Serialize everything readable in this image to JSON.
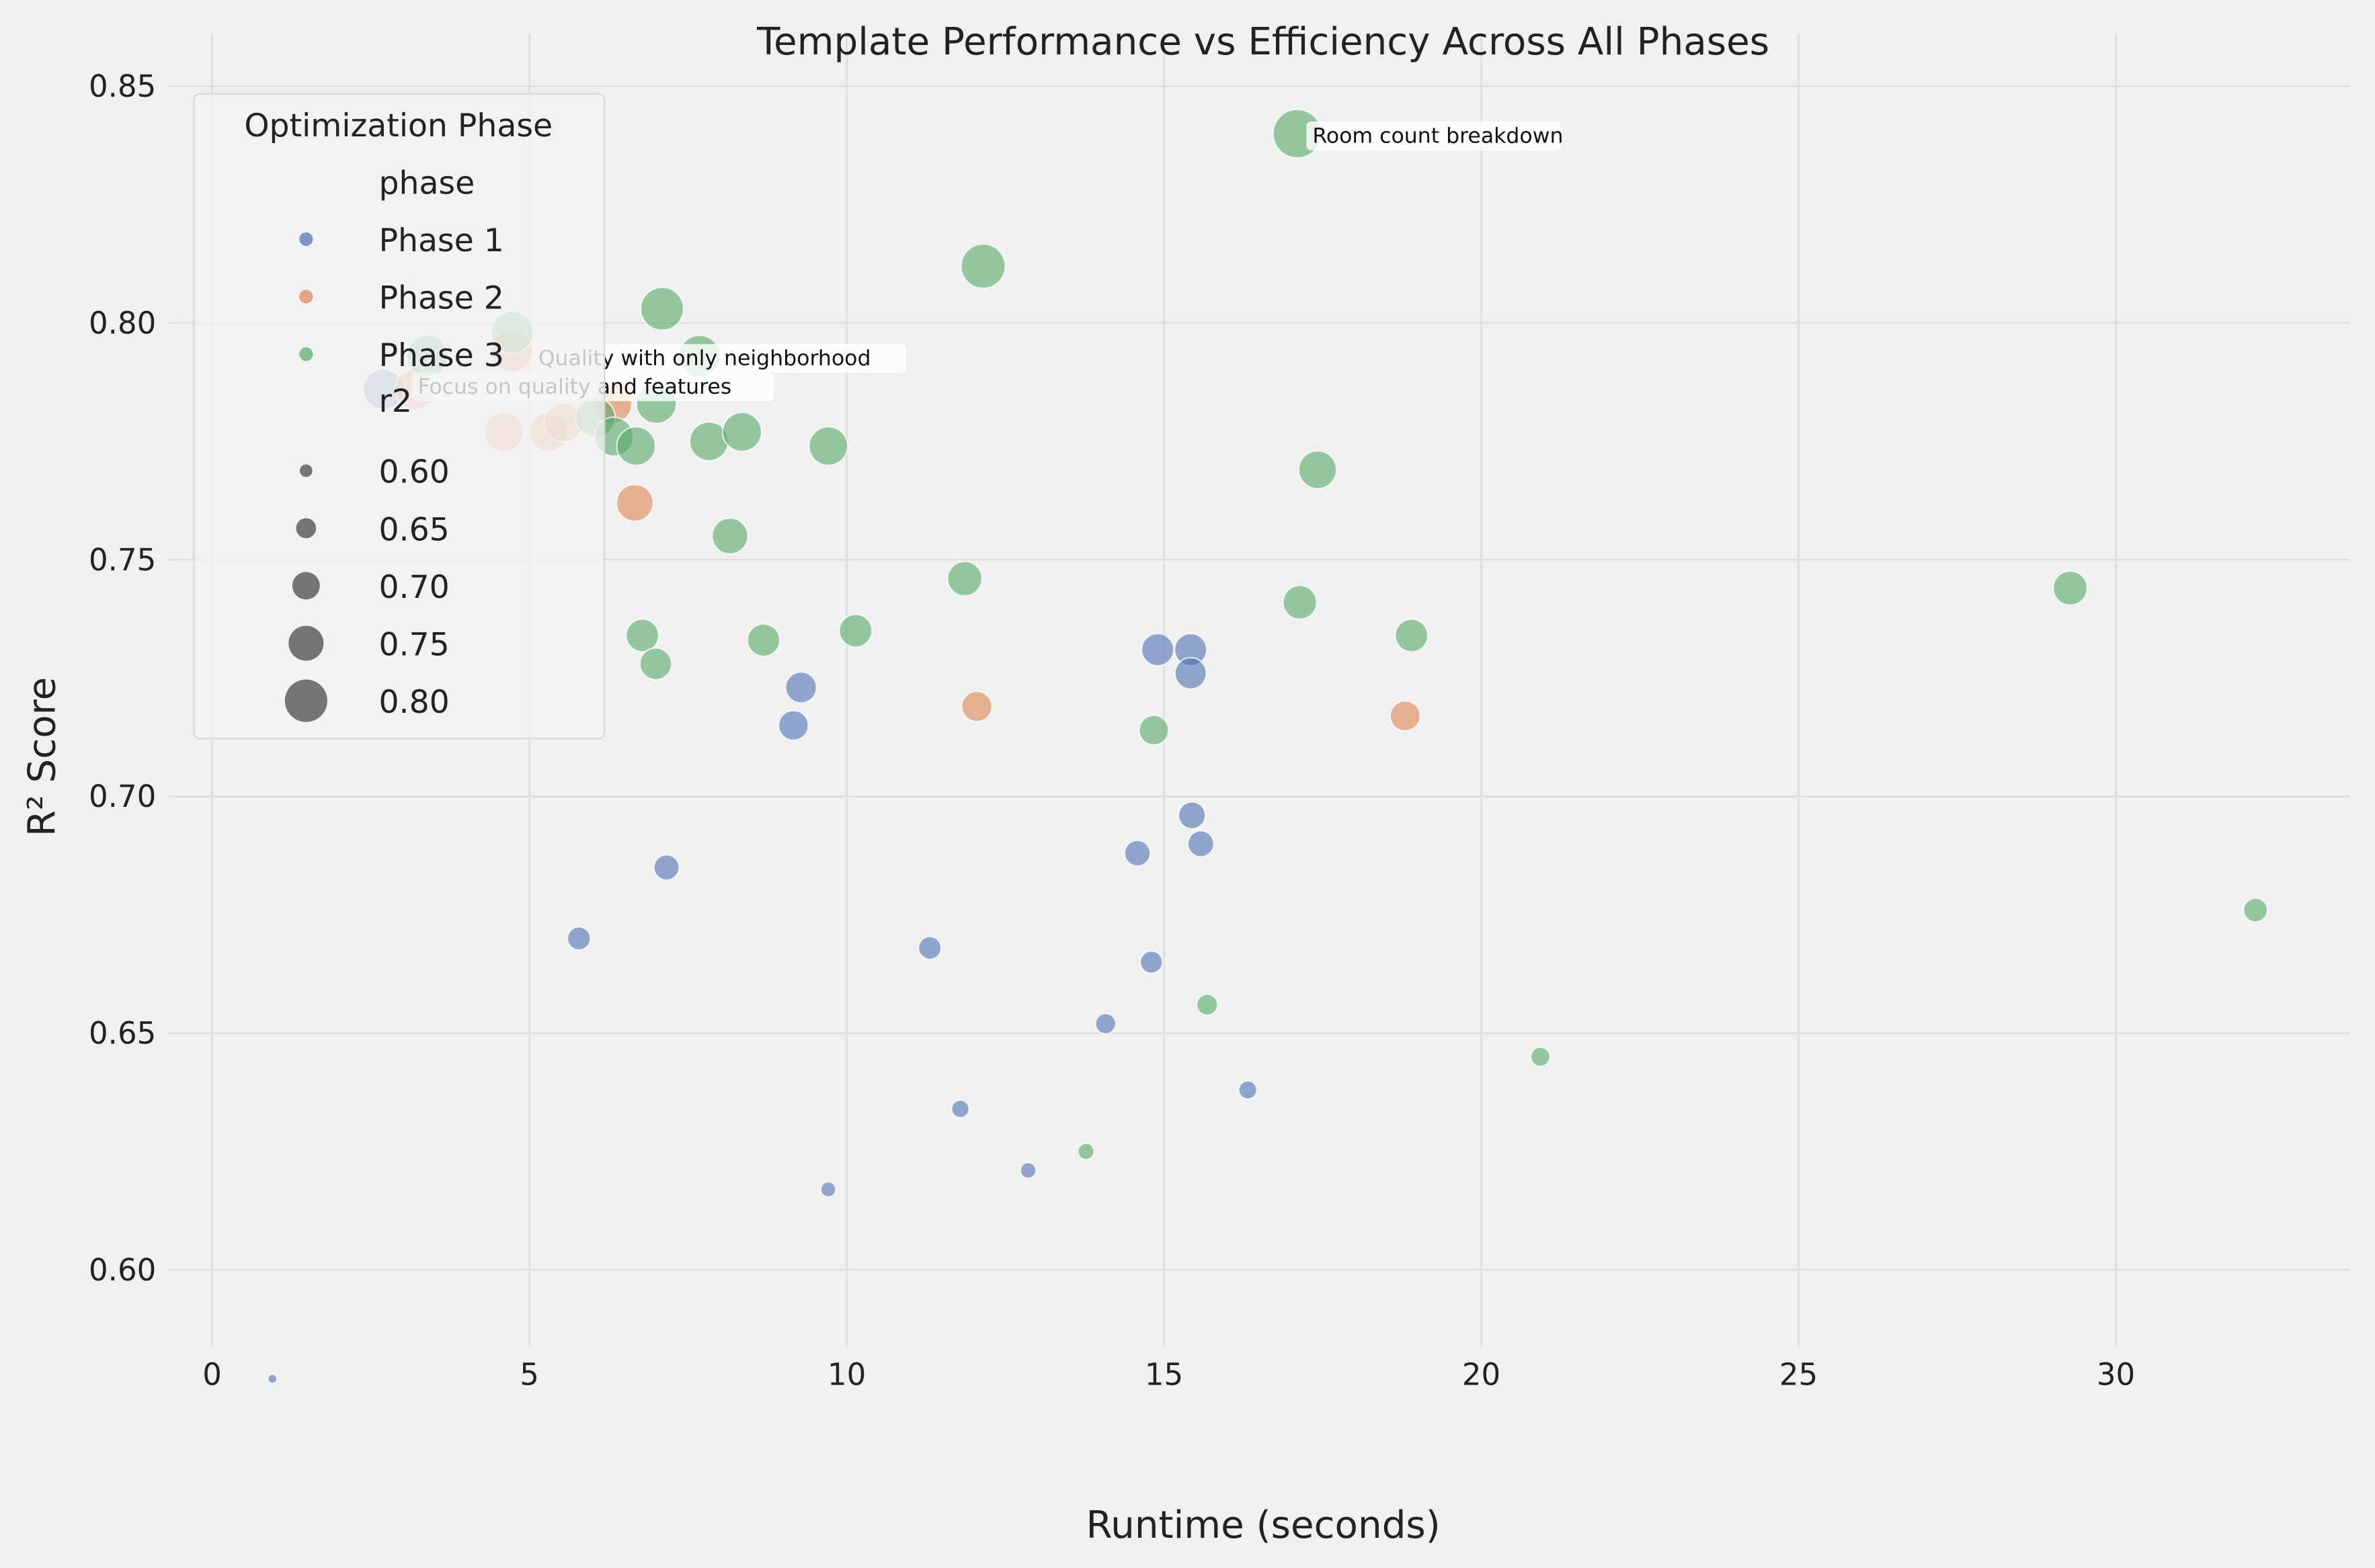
{
  "chart_data": {
    "type": "scatter",
    "title": "Template Performance vs Efficiency Across All Phases",
    "xlabel": "Runtime (seconds)",
    "ylabel": "R² Score",
    "xlim": [
      -0.7,
      33.6
    ],
    "ylim": [
      0.565,
      0.852
    ],
    "xticks": [
      0,
      5,
      10,
      15,
      20,
      25,
      30
    ],
    "yticks": [
      0.6,
      0.65,
      0.7,
      0.75,
      0.8,
      0.85
    ],
    "grid": true,
    "legend": {
      "title": "Optimization Phase",
      "placement": "top-left",
      "hue_title": "phase",
      "size_title": "r2",
      "size_labels": [
        "0.60",
        "0.65",
        "0.70",
        "0.75",
        "0.80"
      ]
    },
    "size_encoding": "r2",
    "series": [
      {
        "name": "Phase 1",
        "color": "#4c72b0",
        "x": [
          0.95,
          2.7,
          5.78,
          7.16,
          9.16,
          9.28,
          9.71,
          11.31,
          11.79,
          12.86,
          14.08,
          14.58,
          14.8,
          14.9,
          15.42,
          15.42,
          15.44,
          15.58,
          16.32
        ],
        "y": [
          0.577,
          0.786,
          0.67,
          0.685,
          0.715,
          0.723,
          0.617,
          0.668,
          0.634,
          0.621,
          0.652,
          0.688,
          0.665,
          0.731,
          0.731,
          0.726,
          0.696,
          0.69,
          0.638
        ]
      },
      {
        "name": "Phase 2",
        "color": "#dd8452",
        "x": [
          3.2,
          4.6,
          4.72,
          5.3,
          5.54,
          6.3,
          6.66,
          12.05,
          18.8
        ],
        "y": [
          0.786,
          0.777,
          0.794,
          0.777,
          0.779,
          0.783,
          0.762,
          0.719,
          0.717
        ]
      },
      {
        "name": "Phase 3",
        "color": "#55a868",
        "x": [
          17.1,
          12.15,
          7.09,
          4.73,
          3.39,
          7.68,
          7.0,
          6.04,
          6.33,
          6.68,
          7.83,
          8.35,
          9.71,
          8.16,
          17.42,
          11.86,
          17.14,
          29.28,
          10.14,
          8.69,
          6.78,
          6.99,
          18.9,
          14.84,
          15.68,
          32.2,
          20.93,
          13.77
        ],
        "y": [
          0.84,
          0.812,
          0.803,
          0.798,
          0.793,
          0.793,
          0.783,
          0.78,
          0.776,
          0.774,
          0.775,
          0.777,
          0.774,
          0.755,
          0.769,
          0.746,
          0.741,
          0.744,
          0.735,
          0.733,
          0.734,
          0.728,
          0.734,
          0.714,
          0.656,
          0.676,
          0.645,
          0.625
        ]
      }
    ],
    "annotations": [
      {
        "text": "Room count breakdown",
        "x": 17.1,
        "y": 0.84
      },
      {
        "text": "Quality with only neighborhood",
        "x": 4.9,
        "y": 0.793
      },
      {
        "text": "Focus on quality and features",
        "x": 3.0,
        "y": 0.787
      }
    ]
  }
}
